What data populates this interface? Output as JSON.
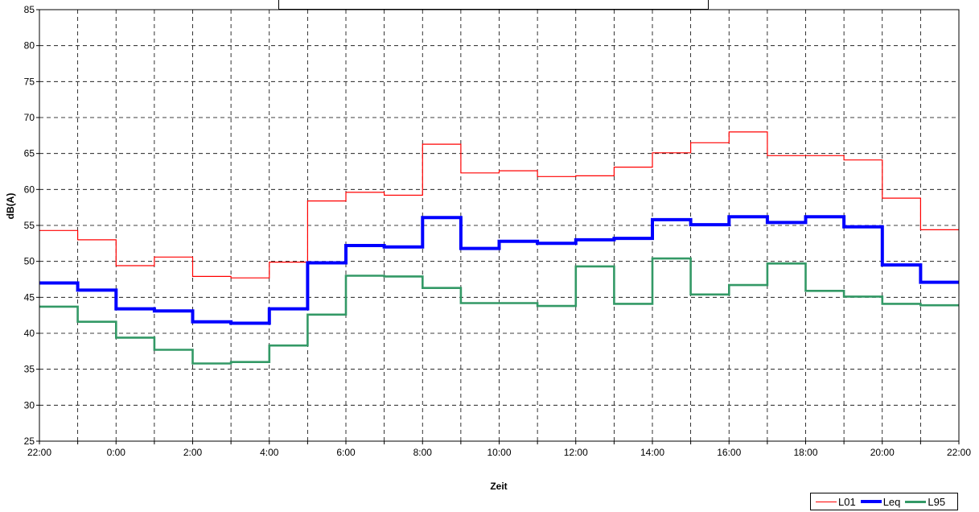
{
  "chart_data": {
    "type": "line",
    "step": true,
    "xlabel": "Zeit",
    "ylabel": "dB(A)",
    "ylim": [
      25,
      85
    ],
    "yticks": [
      25,
      30,
      35,
      40,
      45,
      50,
      55,
      60,
      65,
      70,
      75,
      80,
      85
    ],
    "xtick_labels": [
      "22:00",
      "0:00",
      "2:00",
      "4:00",
      "6:00",
      "8:00",
      "10:00",
      "12:00",
      "14:00",
      "16:00",
      "18:00",
      "20:00",
      "22:00"
    ],
    "x_hours": [
      "22:00",
      "23:00",
      "0:00",
      "1:00",
      "2:00",
      "3:00",
      "4:00",
      "5:00",
      "6:00",
      "7:00",
      "8:00",
      "9:00",
      "10:00",
      "11:00",
      "12:00",
      "13:00",
      "14:00",
      "15:00",
      "16:00",
      "17:00",
      "18:00",
      "19:00",
      "20:00",
      "21:00"
    ],
    "grid": true,
    "legend_position": "bottom-right",
    "series": [
      {
        "name": "L01",
        "color": "#ff0000",
        "values": [
          54.3,
          53.0,
          49.4,
          50.6,
          47.9,
          47.7,
          49.9,
          58.4,
          59.6,
          59.2,
          66.3,
          62.3,
          62.6,
          61.8,
          61.9,
          63.1,
          65.1,
          66.5,
          68.0,
          64.7,
          64.7,
          64.1,
          58.8,
          54.4
        ]
      },
      {
        "name": "Leq",
        "color": "#0000ff",
        "values": [
          47.0,
          46.0,
          43.4,
          43.1,
          41.6,
          41.4,
          43.4,
          49.8,
          52.2,
          52.0,
          56.1,
          51.8,
          52.8,
          52.5,
          53.0,
          53.2,
          55.8,
          55.1,
          56.2,
          55.4,
          56.2,
          54.8,
          49.5,
          47.1
        ]
      },
      {
        "name": "L95",
        "color": "#339966",
        "values": [
          43.7,
          41.6,
          39.4,
          37.7,
          35.8,
          36.0,
          38.3,
          42.6,
          48.0,
          47.9,
          46.3,
          44.2,
          44.2,
          43.8,
          49.3,
          44.1,
          50.4,
          45.4,
          46.7,
          49.7,
          45.9,
          45.1,
          44.1,
          43.9
        ]
      }
    ]
  }
}
